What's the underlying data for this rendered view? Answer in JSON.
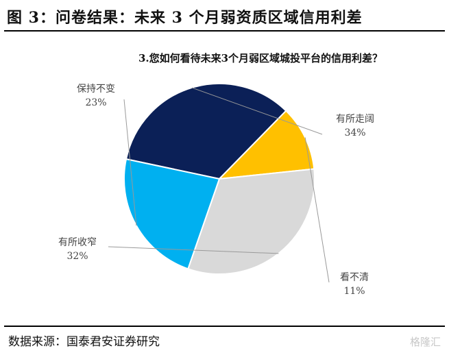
{
  "figure": {
    "title": "图 3：问卷结果：未来 3 个月弱资质区域信用利差",
    "source": "数据来源：国泰君安证券研究",
    "watermark": "格隆汇"
  },
  "colors": {
    "slice_1": "#0b2057",
    "slice_2": "#ffc000",
    "slice_3": "#d9d9d9",
    "slice_4": "#00b0f0",
    "leader_line": "#999999"
  },
  "chart_data": {
    "type": "pie",
    "title": "3.您如何看待未来3个月弱区域城投平台的信用利差？",
    "slices": [
      {
        "label": "有所走阔",
        "value": 34,
        "value_label": "34%"
      },
      {
        "label": "看不清",
        "value": 11,
        "value_label": "11%"
      },
      {
        "label": "有所收窄",
        "value": 32,
        "value_label": "32%"
      },
      {
        "label": "保持不变",
        "value": 23,
        "value_label": "23%"
      }
    ]
  }
}
